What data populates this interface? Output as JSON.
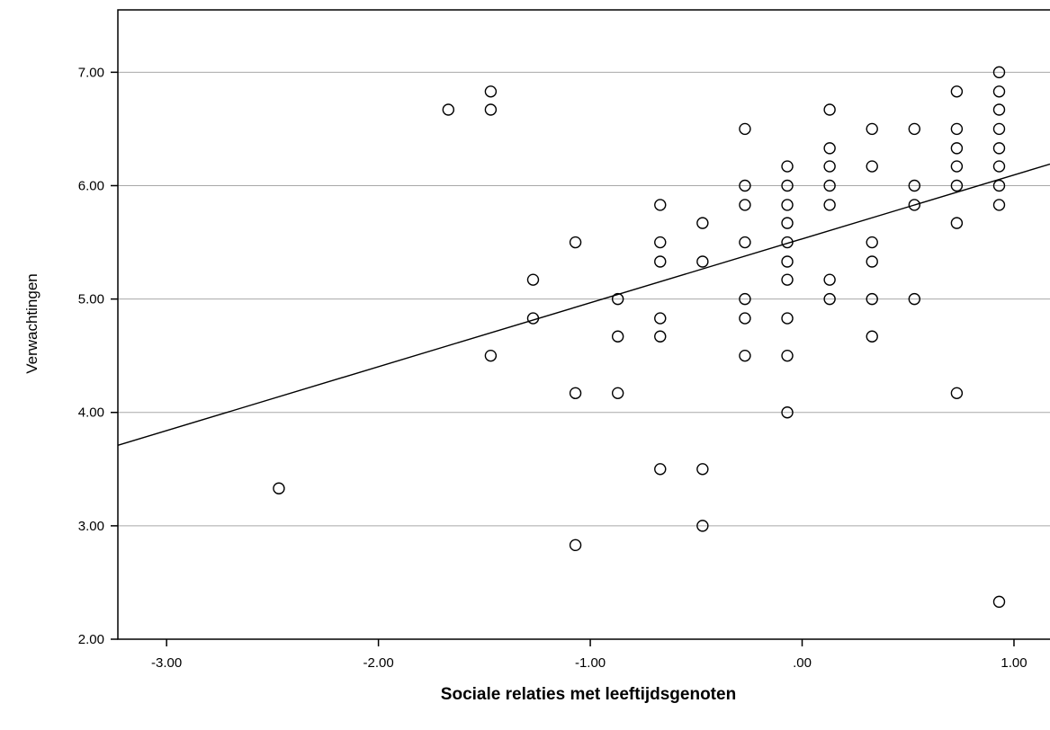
{
  "chart_data": {
    "type": "scatter",
    "title": "",
    "xlabel": "Sociale relaties met leeftijdsgenoten",
    "ylabel": "Verwachtingen",
    "xlim": [
      -3.23,
      1.17
    ],
    "ylim": [
      2.0,
      7.55
    ],
    "x_ticks": [
      -3.0,
      -2.0,
      -1.0,
      0.0,
      1.0
    ],
    "x_tick_labels": [
      "-3.00",
      "-2.00",
      "-1.00",
      ".00",
      "1.00"
    ],
    "y_ticks": [
      2.0,
      3.0,
      4.0,
      5.0,
      6.0,
      7.0
    ],
    "y_tick_labels": [
      "2.00",
      "3.00",
      "4.00",
      "5.00",
      "6.00",
      "7.00"
    ],
    "grid": "horizontal",
    "legend": "none",
    "fit_line": {
      "type": "linear",
      "points": [
        [
          -3.23,
          3.71
        ],
        [
          1.17,
          6.19
        ]
      ]
    },
    "points": [
      [
        -2.47,
        3.33
      ],
      [
        -1.67,
        6.67
      ],
      [
        -1.47,
        6.83
      ],
      [
        -1.47,
        6.67
      ],
      [
        -1.47,
        4.5
      ],
      [
        -1.27,
        5.17
      ],
      [
        -1.27,
        4.83
      ],
      [
        -1.07,
        5.5
      ],
      [
        -1.07,
        4.17
      ],
      [
        -1.07,
        2.83
      ],
      [
        -0.87,
        5.0
      ],
      [
        -0.87,
        4.67
      ],
      [
        -0.87,
        4.17
      ],
      [
        -0.67,
        5.83
      ],
      [
        -0.67,
        5.5
      ],
      [
        -0.67,
        5.33
      ],
      [
        -0.67,
        4.83
      ],
      [
        -0.67,
        4.67
      ],
      [
        -0.67,
        3.5
      ],
      [
        -0.47,
        5.67
      ],
      [
        -0.47,
        5.33
      ],
      [
        -0.47,
        3.5
      ],
      [
        -0.47,
        3.0
      ],
      [
        -0.27,
        6.5
      ],
      [
        -0.27,
        6.0
      ],
      [
        -0.27,
        5.83
      ],
      [
        -0.27,
        5.5
      ],
      [
        -0.27,
        5.0
      ],
      [
        -0.27,
        4.83
      ],
      [
        -0.27,
        4.5
      ],
      [
        -0.07,
        6.17
      ],
      [
        -0.07,
        6.0
      ],
      [
        -0.07,
        5.83
      ],
      [
        -0.07,
        5.67
      ],
      [
        -0.07,
        5.5
      ],
      [
        -0.07,
        5.33
      ],
      [
        -0.07,
        5.17
      ],
      [
        -0.07,
        4.83
      ],
      [
        -0.07,
        4.5
      ],
      [
        -0.07,
        4.0
      ],
      [
        0.13,
        6.67
      ],
      [
        0.13,
        6.33
      ],
      [
        0.13,
        6.17
      ],
      [
        0.13,
        6.0
      ],
      [
        0.13,
        5.83
      ],
      [
        0.13,
        5.17
      ],
      [
        0.13,
        5.0
      ],
      [
        0.33,
        6.5
      ],
      [
        0.33,
        6.17
      ],
      [
        0.33,
        5.5
      ],
      [
        0.33,
        5.33
      ],
      [
        0.33,
        5.0
      ],
      [
        0.33,
        4.67
      ],
      [
        0.53,
        6.5
      ],
      [
        0.53,
        6.0
      ],
      [
        0.53,
        5.83
      ],
      [
        0.53,
        5.0
      ],
      [
        0.73,
        6.83
      ],
      [
        0.73,
        6.5
      ],
      [
        0.73,
        6.33
      ],
      [
        0.73,
        6.17
      ],
      [
        0.73,
        6.0
      ],
      [
        0.73,
        5.67
      ],
      [
        0.73,
        4.17
      ],
      [
        0.93,
        7.0
      ],
      [
        0.93,
        6.83
      ],
      [
        0.93,
        6.67
      ],
      [
        0.93,
        6.5
      ],
      [
        0.93,
        6.33
      ],
      [
        0.93,
        6.17
      ],
      [
        0.93,
        6.0
      ],
      [
        0.93,
        5.83
      ],
      [
        0.93,
        2.33
      ]
    ]
  }
}
